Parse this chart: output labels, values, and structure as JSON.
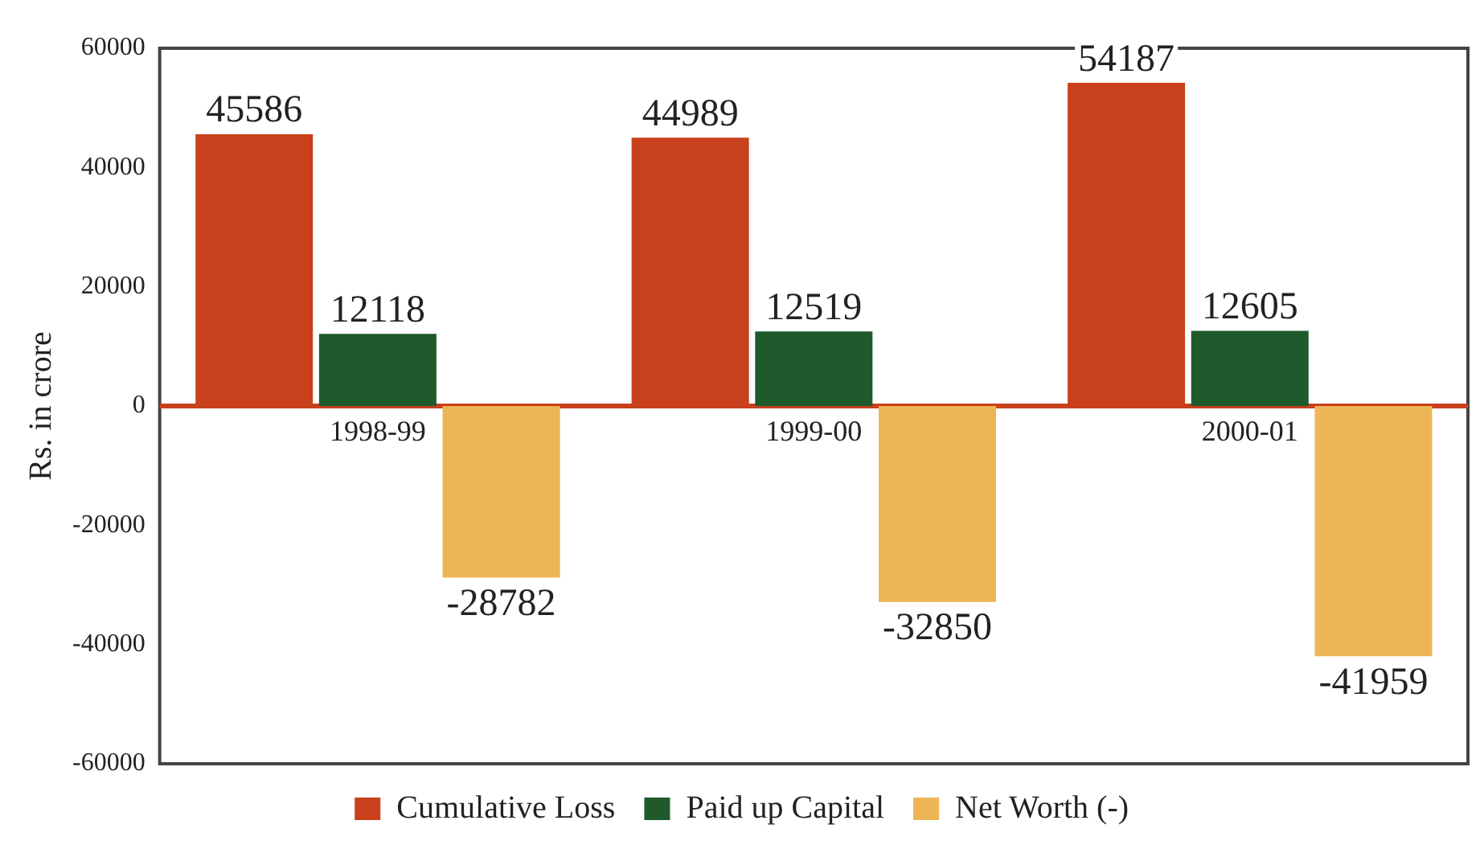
{
  "chart_data": {
    "type": "bar",
    "ylabel": "Rs. in crore",
    "categories": [
      "1998-99",
      "1999-00",
      "2000-01"
    ],
    "series": [
      {
        "name": "Cumulative Loss",
        "color": "#c8401c",
        "values": [
          45586,
          44989,
          54187
        ]
      },
      {
        "name": "Paid up Capital",
        "color": "#1e5a2c",
        "values": [
          12118,
          12519,
          12605
        ]
      },
      {
        "name": "Net Worth (-)",
        "color": "#eeb556",
        "values": [
          -28782,
          -32850,
          -41959
        ]
      }
    ],
    "ylim": [
      -60000,
      60000
    ],
    "yticks": [
      -60000,
      -40000,
      -20000,
      0,
      20000,
      40000,
      60000
    ],
    "grid": false,
    "legend": "bottom",
    "data_labels": true
  }
}
